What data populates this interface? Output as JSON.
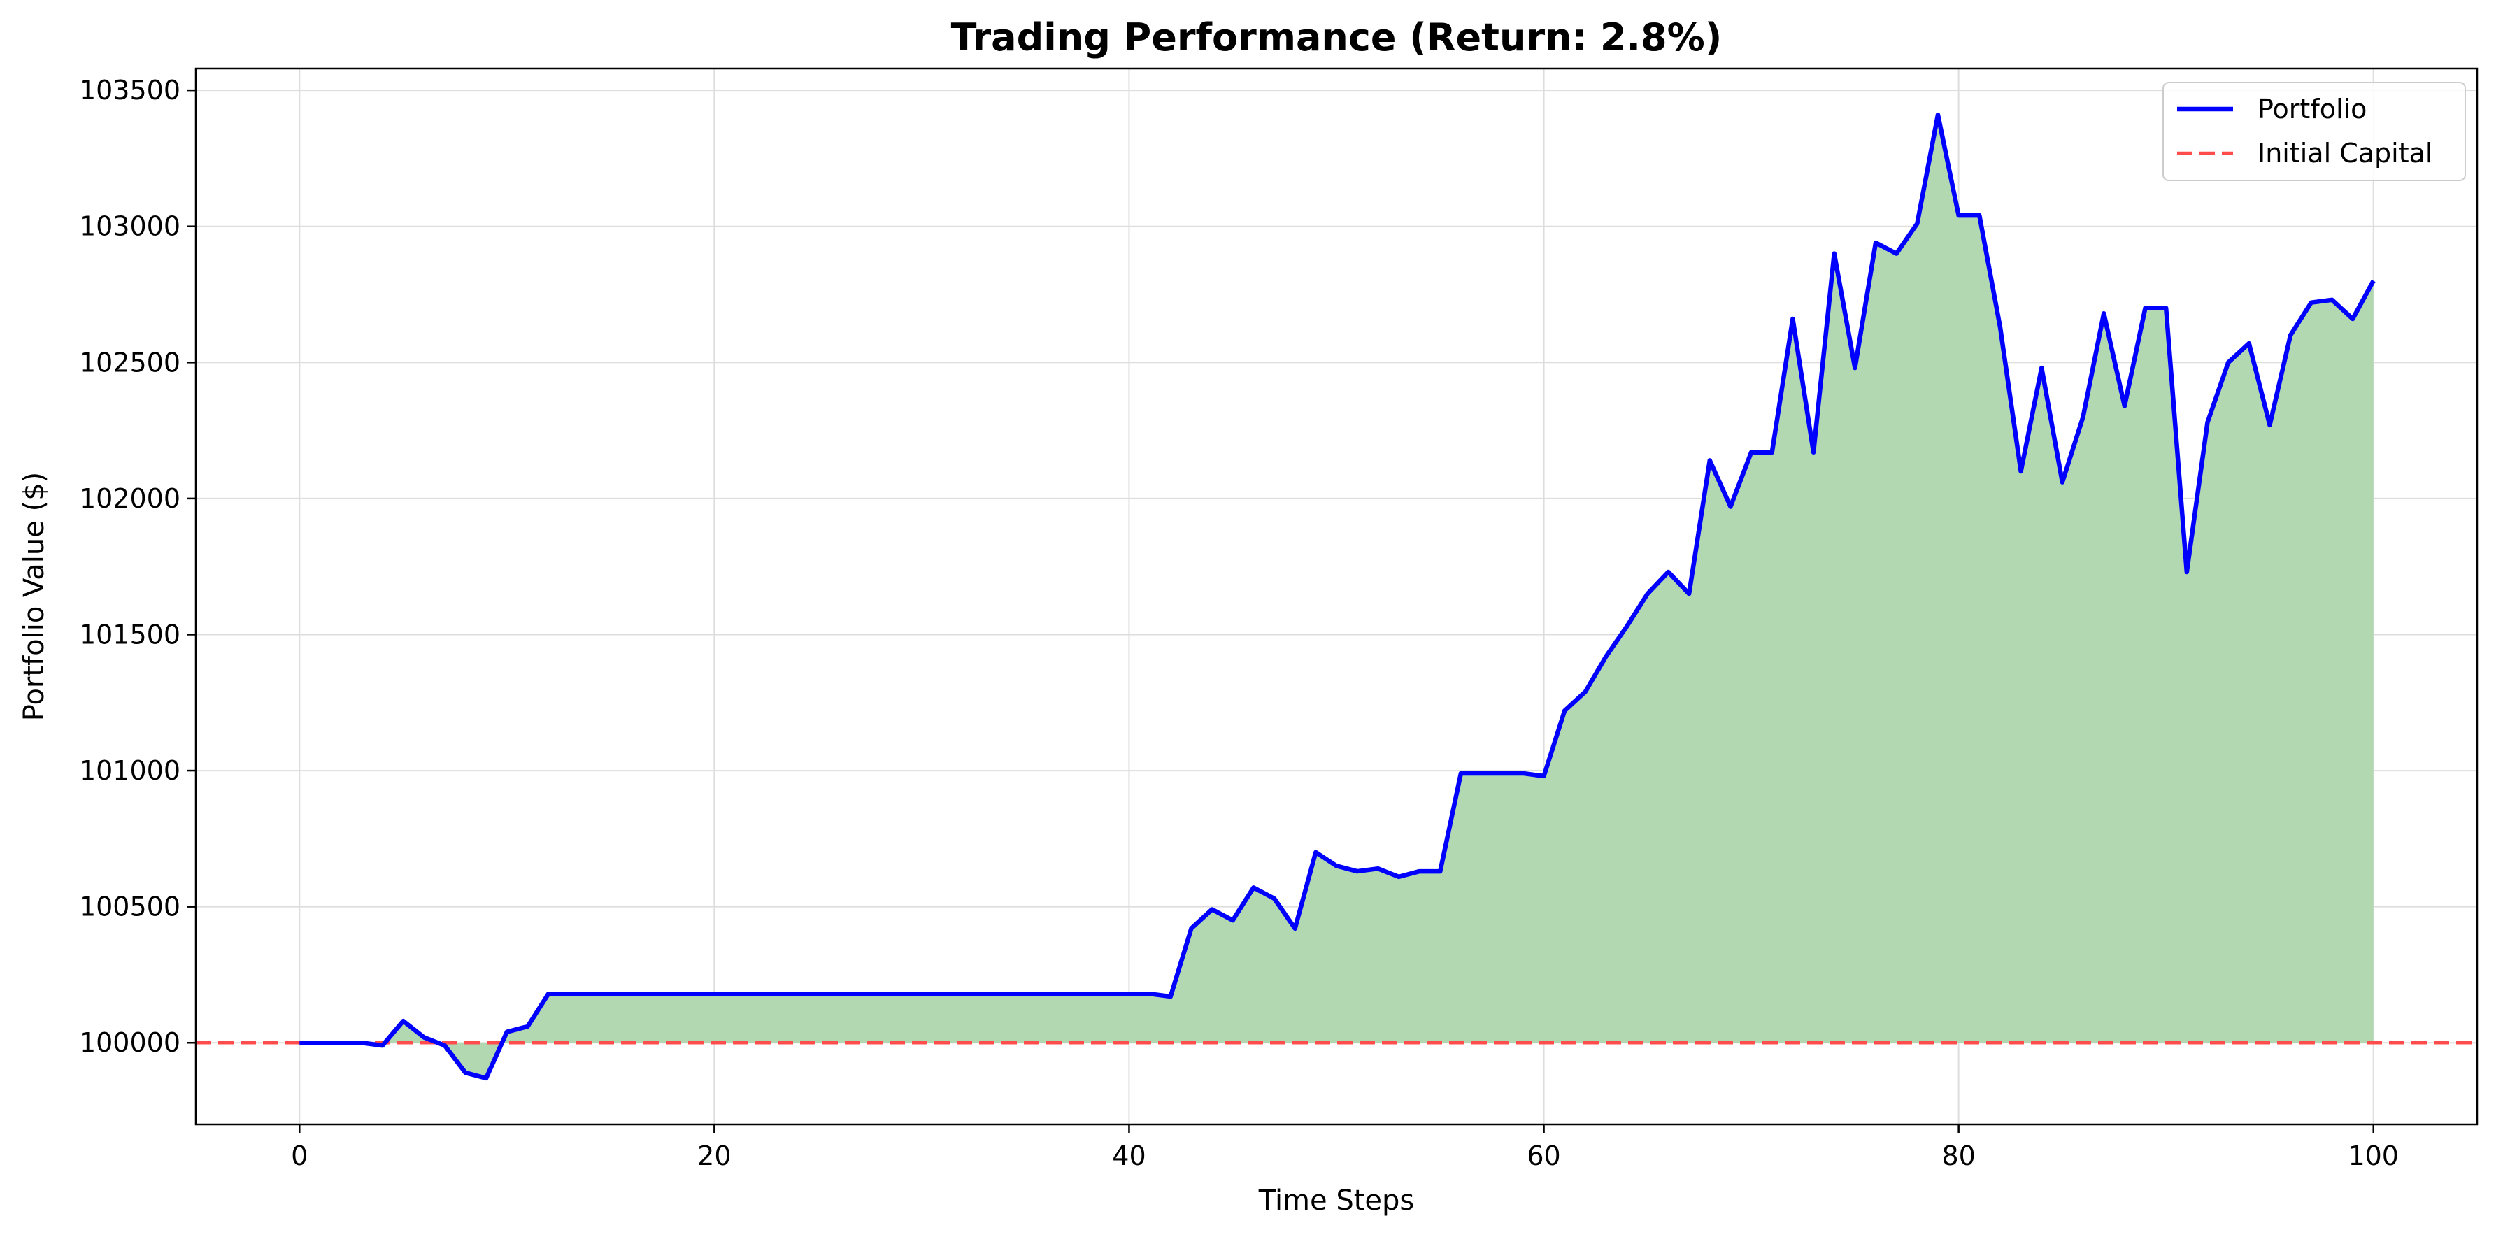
{
  "chart_data": {
    "type": "line",
    "title": "Trading Performance (Return: 2.8%)",
    "xlabel": "Time Steps",
    "ylabel": "Portfolio Value ($)",
    "xlim": [
      -5,
      105
    ],
    "ylim": [
      99700,
      103580
    ],
    "x_ticks": [
      0,
      20,
      40,
      60,
      80,
      100
    ],
    "y_ticks": [
      100000,
      100500,
      101000,
      101500,
      102000,
      102500,
      103000,
      103500
    ],
    "grid": true,
    "legend_position": "top-right",
    "series": [
      {
        "name": "Portfolio",
        "style": "solid",
        "color": "#0000ff",
        "fill_color": "#b2d8b2",
        "x": [
          0,
          1,
          2,
          3,
          4,
          5,
          6,
          7,
          8,
          9,
          10,
          11,
          12,
          13,
          14,
          15,
          16,
          17,
          18,
          19,
          20,
          21,
          22,
          23,
          24,
          25,
          26,
          27,
          28,
          29,
          30,
          31,
          32,
          33,
          34,
          35,
          36,
          37,
          38,
          39,
          40,
          41,
          42,
          43,
          44,
          45,
          46,
          47,
          48,
          49,
          50,
          51,
          52,
          53,
          54,
          55,
          56,
          57,
          58,
          59,
          60,
          61,
          62,
          63,
          64,
          65,
          66,
          67,
          68,
          69,
          70,
          71,
          72,
          73,
          74,
          75,
          76,
          77,
          78,
          79,
          80,
          81,
          82,
          83,
          84,
          85,
          86,
          87,
          88,
          89,
          90,
          91,
          92,
          93,
          94,
          95,
          96,
          97,
          98,
          99,
          100
        ],
        "values": [
          100000,
          100000,
          100000,
          100000,
          99990,
          100080,
          100020,
          99990,
          99890,
          99870,
          100040,
          100060,
          100180,
          100180,
          100180,
          100180,
          100180,
          100180,
          100180,
          100180,
          100180,
          100180,
          100180,
          100180,
          100180,
          100180,
          100180,
          100180,
          100180,
          100180,
          100180,
          100180,
          100180,
          100180,
          100180,
          100180,
          100180,
          100180,
          100180,
          100180,
          100180,
          100180,
          100170,
          100420,
          100490,
          100450,
          100570,
          100530,
          100420,
          100700,
          100650,
          100630,
          100640,
          100610,
          100630,
          100630,
          100990,
          100990,
          100990,
          100990,
          100980,
          101220,
          101290,
          101420,
          101530,
          101650,
          101730,
          101650,
          102140,
          101970,
          102170,
          102170,
          102660,
          102170,
          102900,
          102480,
          102940,
          102900,
          103010,
          103410,
          103040,
          103040,
          102630,
          102100,
          102480,
          102060,
          102300,
          102680,
          102340,
          102700,
          102700,
          101730,
          102280,
          102500,
          102570,
          102270,
          102600,
          102720,
          102730,
          102660,
          102800
        ]
      },
      {
        "name": "Initial Capital",
        "style": "dashed",
        "color": "#ff4d4d",
        "y": 100000
      }
    ]
  }
}
